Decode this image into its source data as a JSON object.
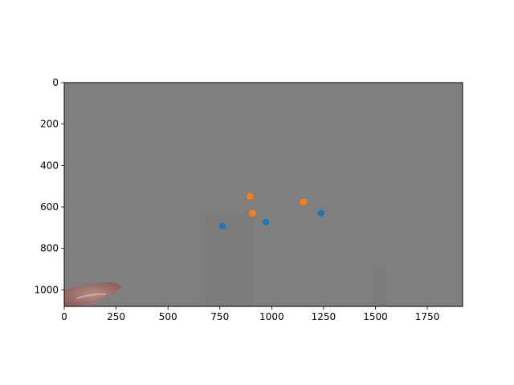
{
  "chart_data": {
    "type": "scatter",
    "title": "",
    "xlabel": "",
    "ylabel": "",
    "xlim": [
      0,
      1920
    ],
    "ylim": [
      1080,
      0
    ],
    "y_inverted": true,
    "grid": false,
    "background": "grayscale camera frame",
    "x_ticks": [
      "0",
      "250",
      "500",
      "750",
      "1000",
      "1250",
      "1500",
      "1750"
    ],
    "x_tick_values": [
      0,
      250,
      500,
      750,
      1000,
      1250,
      1500,
      1750
    ],
    "y_ticks": [
      "0",
      "200",
      "400",
      "600",
      "800",
      "1000"
    ],
    "y_tick_values": [
      0,
      200,
      400,
      600,
      800,
      1000
    ],
    "series": [
      {
        "color": "#1f77b4",
        "points": [
          {
            "x": 763,
            "y": 692
          },
          {
            "x": 972,
            "y": 673
          },
          {
            "x": 1238,
            "y": 630
          }
        ]
      },
      {
        "color": "#ff7f0e",
        "points": [
          {
            "x": 896,
            "y": 549
          },
          {
            "x": 907,
            "y": 630
          },
          {
            "x": 1153,
            "y": 576
          }
        ]
      }
    ]
  }
}
